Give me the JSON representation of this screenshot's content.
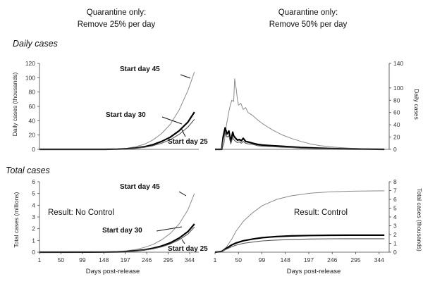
{
  "columns": [
    {
      "line1": "Quarantine only:",
      "line2": "Remove 25% per day"
    },
    {
      "line1": "Quarantine only:",
      "line2": "Remove 50% per day"
    }
  ],
  "sections": {
    "daily": "Daily cases",
    "total": "Total cases"
  },
  "colors": {
    "start45": "#8a8a8a",
    "start30": "#000000",
    "start25": "#555555"
  },
  "chart_data": [
    {
      "id": "daily_left",
      "type": "line",
      "ylabel": "Daily cases (thousands)",
      "xlabel": "",
      "ylim": [
        0,
        120
      ],
      "yticks": [
        0,
        20,
        40,
        60,
        80,
        100,
        120
      ],
      "xlim": [
        1,
        365
      ],
      "xticks": [],
      "series": [
        {
          "name": "Start day 45",
          "x": [
            1,
            150,
            180,
            200,
            220,
            240,
            260,
            280,
            300,
            320,
            340,
            355
          ],
          "y": [
            0,
            0,
            0.5,
            1.5,
            3.5,
            7,
            13,
            22,
            35,
            55,
            82,
            108
          ]
        },
        {
          "name": "Start day 30",
          "x": [
            1,
            150,
            180,
            200,
            220,
            240,
            260,
            280,
            300,
            320,
            340,
            355
          ],
          "y": [
            0,
            0,
            0.3,
            0.8,
            1.8,
            3.5,
            6.5,
            11,
            17,
            26,
            38,
            52
          ]
        },
        {
          "name": "Start day 25",
          "x": [
            1,
            150,
            180,
            200,
            220,
            240,
            260,
            280,
            300,
            320,
            340,
            355
          ],
          "y": [
            0,
            0,
            0.2,
            0.6,
            1.4,
            2.8,
            5,
            8.5,
            13.5,
            21,
            31,
            42
          ]
        }
      ],
      "annotations": [
        "Start day 45",
        "Start day 30",
        "Start day 25"
      ]
    },
    {
      "id": "daily_right",
      "type": "line",
      "ylabel": "Daily cases",
      "xlabel": "",
      "ylim": [
        0,
        140
      ],
      "yticks": [
        0,
        20,
        40,
        60,
        80,
        100,
        140
      ],
      "xlim": [
        1,
        365
      ],
      "xticks": [],
      "series": [
        {
          "name": "Start day 45",
          "x": [
            1,
            15,
            20,
            25,
            30,
            33,
            36,
            40,
            42,
            45,
            48,
            50,
            55,
            60,
            65,
            70,
            80,
            90,
            100,
            120,
            140,
            160,
            180,
            200,
            220,
            250,
            280,
            310,
            340,
            355
          ],
          "y": [
            0,
            0,
            10,
            40,
            62,
            72,
            80,
            78,
            115,
            100,
            80,
            72,
            75,
            65,
            68,
            60,
            55,
            48,
            42,
            32,
            24,
            18,
            13,
            9,
            6,
            3.5,
            2,
            1,
            0.5,
            0
          ]
        },
        {
          "name": "Start day 30",
          "x": [
            1,
            15,
            18,
            22,
            26,
            30,
            34,
            38,
            40,
            44,
            48,
            52,
            56,
            60,
            65,
            70,
            80,
            90,
            100,
            120,
            140,
            160,
            180,
            200,
            220,
            250,
            280,
            310,
            340,
            355
          ],
          "y": [
            0,
            0,
            20,
            35,
            25,
            30,
            12,
            28,
            22,
            18,
            15,
            16,
            14,
            18,
            13,
            12,
            10,
            8,
            7,
            6,
            5,
            4,
            3,
            2.5,
            2,
            1.2,
            0.6,
            0.3,
            0.1,
            0
          ]
        },
        {
          "name": "Start day 25",
          "x": [
            1,
            15,
            18,
            22,
            26,
            30,
            34,
            38,
            40,
            44,
            48,
            52,
            56,
            60,
            65,
            70,
            80,
            90,
            100,
            120,
            140,
            160,
            180,
            200,
            220,
            250,
            280,
            310,
            340,
            355
          ],
          "y": [
            0,
            0,
            15,
            27,
            20,
            22,
            9,
            20,
            16,
            13,
            11,
            12,
            10,
            13,
            10,
            9,
            8,
            6,
            5,
            4.5,
            3.5,
            3,
            2,
            1.5,
            1.2,
            0.8,
            0.4,
            0.2,
            0.1,
            0
          ]
        }
      ]
    },
    {
      "id": "total_left",
      "type": "line",
      "ylabel": "Total cases (millions)",
      "xlabel": "Days post-release",
      "ylim": [
        0,
        6
      ],
      "yticks": [
        0,
        1,
        2,
        3,
        4,
        5,
        6
      ],
      "xlim": [
        1,
        365
      ],
      "xticks": [
        1,
        50,
        99,
        148,
        197,
        246,
        295,
        344
      ],
      "series": [
        {
          "name": "Start day 45",
          "x": [
            1,
            150,
            180,
            200,
            220,
            240,
            260,
            280,
            300,
            320,
            340,
            355
          ],
          "y": [
            0,
            0.02,
            0.06,
            0.12,
            0.22,
            0.4,
            0.65,
            1.05,
            1.6,
            2.4,
            3.6,
            5.0
          ]
        },
        {
          "name": "Start day 30",
          "x": [
            1,
            150,
            180,
            200,
            220,
            240,
            260,
            280,
            300,
            320,
            340,
            355
          ],
          "y": [
            0,
            0.01,
            0.03,
            0.06,
            0.12,
            0.2,
            0.33,
            0.52,
            0.8,
            1.2,
            1.75,
            2.4
          ]
        },
        {
          "name": "Start day 25",
          "x": [
            1,
            150,
            180,
            200,
            220,
            240,
            260,
            280,
            300,
            320,
            340,
            355
          ],
          "y": [
            0,
            0.01,
            0.02,
            0.05,
            0.1,
            0.17,
            0.28,
            0.45,
            0.7,
            1.05,
            1.55,
            2.15
          ]
        }
      ],
      "annotations": [
        "Start day 45",
        "Start day 30",
        "Start day 25"
      ],
      "result": "Result:  No Control"
    },
    {
      "id": "total_right",
      "type": "line",
      "ylabel": "Total cases (thousands)",
      "xlabel": "Days post-release",
      "ylim": [
        0,
        8
      ],
      "yticks": [
        0,
        1,
        2,
        3,
        4,
        5,
        6,
        7,
        8
      ],
      "xlim": [
        1,
        365
      ],
      "xticks": [
        1,
        50,
        99,
        148,
        197,
        246,
        295,
        344
      ],
      "series": [
        {
          "name": "Start day 45",
          "x": [
            1,
            15,
            25,
            35,
            45,
            60,
            80,
            100,
            130,
            160,
            200,
            240,
            280,
            320,
            355
          ],
          "y": [
            0,
            0.1,
            0.6,
            1.4,
            2.4,
            3.5,
            4.5,
            5.3,
            6.0,
            6.4,
            6.7,
            6.85,
            6.92,
            6.95,
            6.97
          ]
        },
        {
          "name": "Start day 30",
          "x": [
            1,
            15,
            25,
            35,
            45,
            60,
            80,
            100,
            130,
            160,
            200,
            240,
            280,
            320,
            355
          ],
          "y": [
            0,
            0.1,
            0.45,
            0.8,
            1.05,
            1.3,
            1.5,
            1.65,
            1.78,
            1.85,
            1.9,
            1.92,
            1.93,
            1.93,
            1.93
          ]
        },
        {
          "name": "Start day 25",
          "x": [
            1,
            15,
            25,
            35,
            45,
            60,
            80,
            100,
            130,
            160,
            200,
            240,
            280,
            320,
            355
          ],
          "y": [
            0,
            0.1,
            0.35,
            0.6,
            0.8,
            1.0,
            1.15,
            1.28,
            1.38,
            1.45,
            1.5,
            1.52,
            1.53,
            1.53,
            1.53
          ]
        }
      ],
      "result": "Result:  Control"
    }
  ]
}
